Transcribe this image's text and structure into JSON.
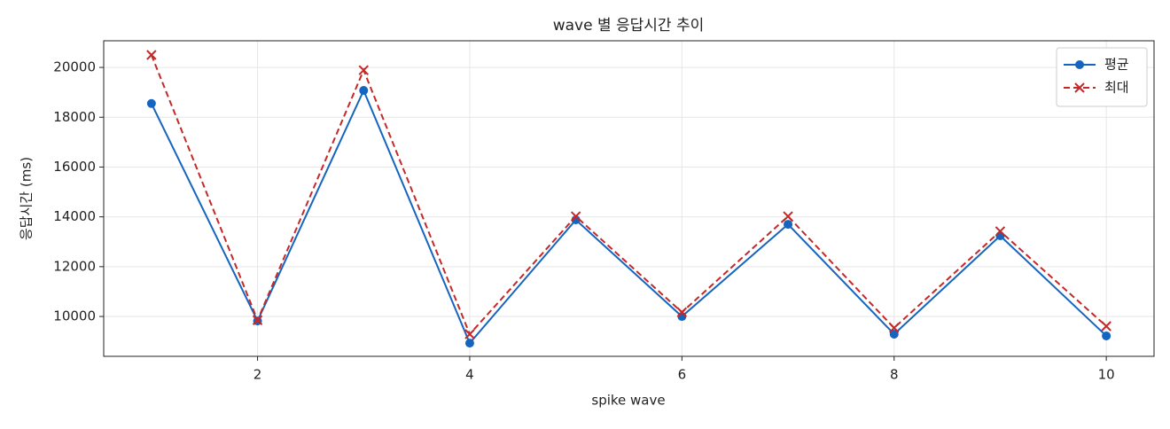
{
  "chart_data": {
    "type": "line",
    "title": "wave 별 응답시간 추이",
    "x_label": "spike wave",
    "y_label": "응답시간 (ms)",
    "x": [
      1,
      2,
      3,
      4,
      5,
      6,
      7,
      8,
      9,
      10
    ],
    "series": [
      {
        "name": "평균",
        "color": "#1565c0",
        "marker": "o",
        "dash": "solid",
        "values": [
          18550,
          9820,
          19075,
          8930,
          13880,
          10000,
          13700,
          9290,
          13240,
          9220
        ]
      },
      {
        "name": "최대",
        "color": "#c62828",
        "marker": "x",
        "dash": "dashed",
        "values": [
          20500,
          9850,
          19890,
          9290,
          14020,
          10170,
          14020,
          9540,
          13420,
          9610
        ]
      }
    ],
    "xlim": [
      0.55,
      10.45
    ],
    "ylim": [
      8400,
      21070
    ],
    "xticks": [
      2,
      4,
      6,
      8,
      10
    ],
    "yticks": [
      10000,
      12000,
      14000,
      16000,
      18000,
      20000
    ],
    "grid": true,
    "legend": "upper right"
  }
}
